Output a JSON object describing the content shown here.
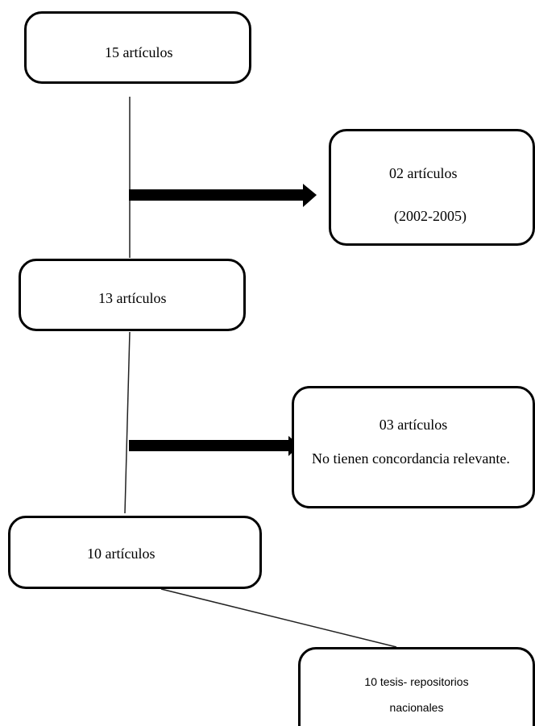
{
  "boxes": {
    "start": "15 artículos",
    "excluded_date": {
      "line1": "02 artículos",
      "line2": "(2002-2005)"
    },
    "after_date": "13 artículos",
    "excluded_relevance": {
      "line1": "03 artículos",
      "line2": "No tienen concordancia relevante."
    },
    "final_articles": "10 artículos",
    "theses": {
      "line1": "10 tesis- repositorios",
      "line2": "nacionales"
    }
  }
}
